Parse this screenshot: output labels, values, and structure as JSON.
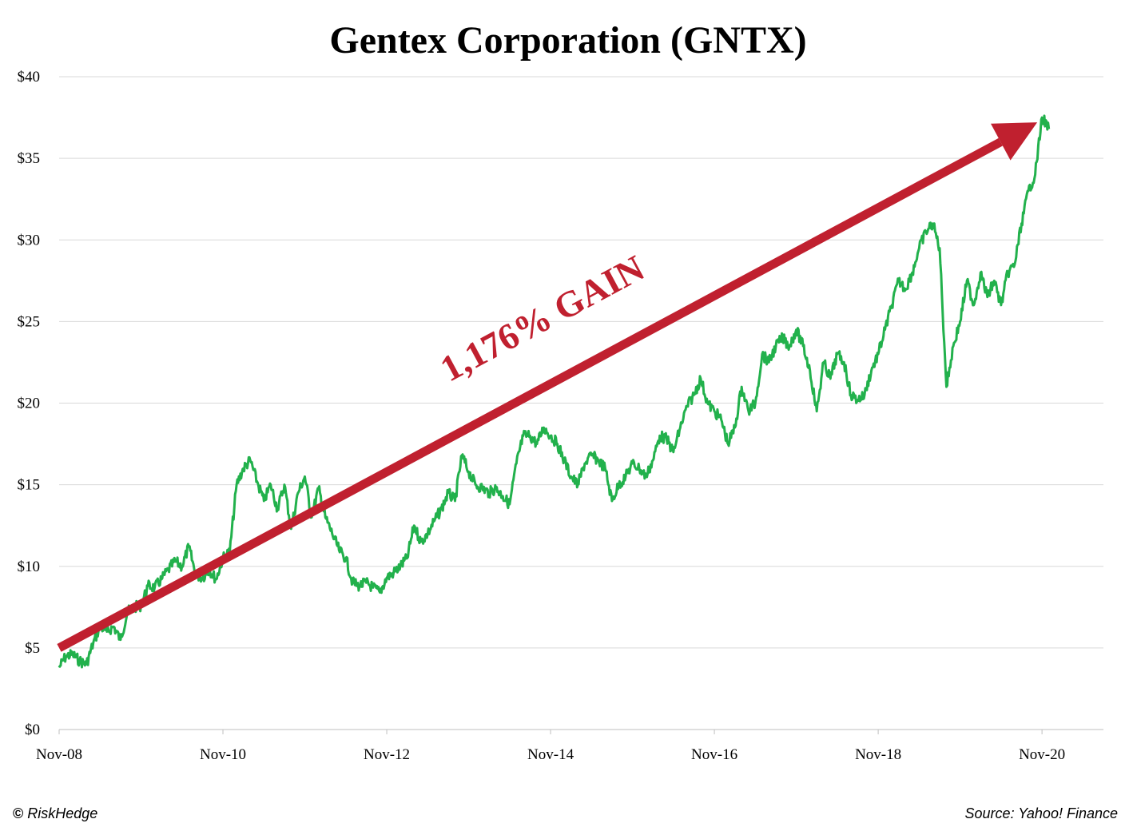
{
  "chart_data": {
    "type": "line",
    "title": "Gentex Corporation (GNTX)",
    "xlabel": "",
    "ylabel": "",
    "ylim": [
      0,
      40
    ],
    "grid": true,
    "yticks": [
      "$0",
      "$5",
      "$10",
      "$15",
      "$20",
      "$25",
      "$30",
      "$35",
      "$40"
    ],
    "xticks": [
      "Nov-08",
      "Nov-10",
      "Nov-12",
      "Nov-14",
      "Nov-16",
      "Nov-18",
      "Nov-20"
    ],
    "xlim": [
      "2008-11",
      "2021-08"
    ],
    "series": [
      {
        "color": "#22b14c",
        "points": [
          [
            "2008-11",
            3.8
          ],
          [
            "2008-12",
            4.5
          ],
          [
            "2009-01",
            4.6
          ],
          [
            "2009-02",
            4.2
          ],
          [
            "2009-03",
            4.0
          ],
          [
            "2009-04",
            5.3
          ],
          [
            "2009-05",
            6.3
          ],
          [
            "2009-06",
            6.0
          ],
          [
            "2009-07",
            6.3
          ],
          [
            "2009-08",
            5.5
          ],
          [
            "2009-09",
            7.2
          ],
          [
            "2009-10",
            7.5
          ],
          [
            "2009-11",
            7.6
          ],
          [
            "2009-12",
            8.8
          ],
          [
            "2010-01",
            8.7
          ],
          [
            "2010-02",
            9.2
          ],
          [
            "2010-03",
            9.8
          ],
          [
            "2010-04",
            10.3
          ],
          [
            "2010-05",
            10.0
          ],
          [
            "2010-06",
            11.2
          ],
          [
            "2010-07",
            9.5
          ],
          [
            "2010-08",
            9.3
          ],
          [
            "2010-09",
            9.8
          ],
          [
            "2010-10",
            9.2
          ],
          [
            "2010-11",
            10.5
          ],
          [
            "2010-12",
            10.9
          ],
          [
            "2011-01",
            15.0
          ],
          [
            "2011-02",
            16.0
          ],
          [
            "2011-03",
            16.5
          ],
          [
            "2011-04",
            15.2
          ],
          [
            "2011-05",
            14.0
          ],
          [
            "2011-06",
            15.0
          ],
          [
            "2011-07",
            13.5
          ],
          [
            "2011-08",
            15.0
          ],
          [
            "2011-09",
            12.3
          ],
          [
            "2011-10",
            14.5
          ],
          [
            "2011-11",
            15.5
          ],
          [
            "2011-12",
            13.0
          ],
          [
            "2012-01",
            14.8
          ],
          [
            "2012-02",
            13.0
          ],
          [
            "2012-03",
            12.0
          ],
          [
            "2012-04",
            11.0
          ],
          [
            "2012-05",
            10.5
          ],
          [
            "2012-06",
            9.0
          ],
          [
            "2012-07",
            8.8
          ],
          [
            "2012-08",
            9.0
          ],
          [
            "2012-09",
            8.7
          ],
          [
            "2012-10",
            8.4
          ],
          [
            "2012-11",
            9.3
          ],
          [
            "2012-12",
            9.6
          ],
          [
            "2013-01",
            10.0
          ],
          [
            "2013-02",
            10.5
          ],
          [
            "2013-03",
            12.5
          ],
          [
            "2013-04",
            11.5
          ],
          [
            "2013-05",
            12.0
          ],
          [
            "2013-06",
            12.8
          ],
          [
            "2013-07",
            13.5
          ],
          [
            "2013-08",
            14.5
          ],
          [
            "2013-09",
            14.0
          ],
          [
            "2013-10",
            16.8
          ],
          [
            "2013-11",
            15.8
          ],
          [
            "2013-12",
            15.0
          ],
          [
            "2014-01",
            14.8
          ],
          [
            "2014-02",
            14.5
          ],
          [
            "2014-03",
            14.8
          ],
          [
            "2014-04",
            14.3
          ],
          [
            "2014-05",
            13.8
          ],
          [
            "2014-06",
            16.3
          ],
          [
            "2014-07",
            18.0
          ],
          [
            "2014-08",
            18.0
          ],
          [
            "2014-09",
            17.5
          ],
          [
            "2014-10",
            18.5
          ],
          [
            "2014-11",
            18.0
          ],
          [
            "2014-12",
            17.5
          ],
          [
            "2015-01",
            16.5
          ],
          [
            "2015-02",
            15.5
          ],
          [
            "2015-03",
            15.0
          ],
          [
            "2015-04",
            16.3
          ],
          [
            "2015-05",
            16.8
          ],
          [
            "2015-06",
            16.5
          ],
          [
            "2015-07",
            16.0
          ],
          [
            "2015-08",
            14.0
          ],
          [
            "2015-09",
            15.0
          ],
          [
            "2015-10",
            15.5
          ],
          [
            "2015-11",
            16.3
          ],
          [
            "2015-12",
            16.0
          ],
          [
            "2016-01",
            15.5
          ],
          [
            "2016-02",
            16.5
          ],
          [
            "2016-03",
            18.0
          ],
          [
            "2016-04",
            17.8
          ],
          [
            "2016-05",
            17.0
          ],
          [
            "2016-06",
            18.5
          ],
          [
            "2016-07",
            19.8
          ],
          [
            "2016-08",
            20.5
          ],
          [
            "2016-09",
            21.5
          ],
          [
            "2016-10",
            20.0
          ],
          [
            "2016-11",
            19.5
          ],
          [
            "2016-12",
            19.0
          ],
          [
            "2017-01",
            17.5
          ],
          [
            "2017-02",
            18.5
          ],
          [
            "2017-03",
            21.0
          ],
          [
            "2017-04",
            19.5
          ],
          [
            "2017-05",
            20.0
          ],
          [
            "2017-06",
            23.0
          ],
          [
            "2017-07",
            22.5
          ],
          [
            "2017-08",
            23.5
          ],
          [
            "2017-09",
            24.0
          ],
          [
            "2017-10",
            23.5
          ],
          [
            "2017-11",
            24.5
          ],
          [
            "2017-12",
            23.5
          ],
          [
            "2018-01",
            22.0
          ],
          [
            "2018-02",
            19.5
          ],
          [
            "2018-03",
            22.5
          ],
          [
            "2018-04",
            21.5
          ],
          [
            "2018-05",
            23.0
          ],
          [
            "2018-06",
            22.5
          ],
          [
            "2018-07",
            20.5
          ],
          [
            "2018-08",
            20.2
          ],
          [
            "2018-09",
            20.5
          ],
          [
            "2018-10",
            22.0
          ],
          [
            "2018-11",
            23.0
          ],
          [
            "2018-12",
            24.5
          ],
          [
            "2019-01",
            26.0
          ],
          [
            "2019-02",
            27.5
          ],
          [
            "2019-03",
            27.0
          ],
          [
            "2019-04",
            28.0
          ],
          [
            "2019-05",
            29.5
          ],
          [
            "2019-06",
            30.5
          ],
          [
            "2019-07",
            31.0
          ],
          [
            "2019-08",
            29.5
          ],
          [
            "2019-09",
            21.0
          ],
          [
            "2019-10",
            23.5
          ],
          [
            "2019-11",
            25.0
          ],
          [
            "2019-12",
            27.5
          ],
          [
            "2020-01",
            26.0
          ],
          [
            "2020-02",
            28.0
          ],
          [
            "2020-03",
            26.5
          ],
          [
            "2020-04",
            27.5
          ],
          [
            "2020-05",
            26.0
          ],
          [
            "2020-06",
            28.0
          ],
          [
            "2020-07",
            28.5
          ],
          [
            "2020-08",
            31.0
          ],
          [
            "2020-09",
            33.0
          ],
          [
            "2020-10",
            34.0
          ],
          [
            "2020-11",
            37.5
          ],
          [
            "2020-12",
            36.8
          ]
        ]
      }
    ],
    "annotations": [
      {
        "text": "1,176% GAIN",
        "color": "#c0202f"
      }
    ],
    "trend_arrow": {
      "from": [
        "2008-11",
        5.0
      ],
      "to": [
        "2020-11",
        37.5
      ],
      "color": "#c0202f"
    }
  },
  "footer": {
    "copyright_symbol": "©",
    "copyright_text": "RiskHedge",
    "source": "Source: Yahoo! Finance"
  }
}
